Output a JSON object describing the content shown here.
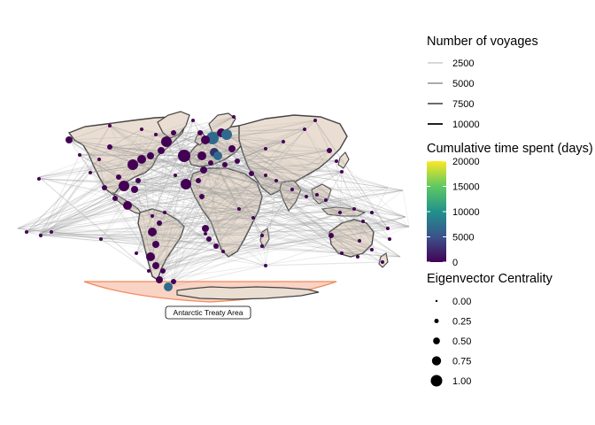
{
  "annotation": {
    "label": "Antarctic Treaty Area"
  },
  "legend_voyages": {
    "title": "Number of voyages",
    "items": [
      {
        "label": "2500",
        "value": 2500
      },
      {
        "label": "5000",
        "value": 5000
      },
      {
        "label": "7500",
        "value": 7500
      },
      {
        "label": "10000",
        "value": 10000
      }
    ]
  },
  "legend_time": {
    "title": "Cumulative time spent (days)",
    "ticks": [
      {
        "label": "20000",
        "value": 20000
      },
      {
        "label": "15000",
        "value": 15000
      },
      {
        "label": "10000",
        "value": 10000
      },
      {
        "label": "5000",
        "value": 5000
      },
      {
        "label": "0",
        "value": 0
      }
    ],
    "range": [
      0,
      20000
    ],
    "palette": [
      "#440154",
      "#3b528b",
      "#21918c",
      "#5ec962",
      "#fde725"
    ]
  },
  "legend_centrality": {
    "title": "Eigenvector Centrality",
    "items": [
      {
        "label": "0.00",
        "value": 0.0
      },
      {
        "label": "0.25",
        "value": 0.25
      },
      {
        "label": "0.50",
        "value": 0.5
      },
      {
        "label": "0.75",
        "value": 0.75
      },
      {
        "label": "1.00",
        "value": 1.0
      }
    ]
  },
  "colors": {
    "land": "#eaded2",
    "border": "#444444",
    "route": "#9a9a9a",
    "treaty_fill": "#f9d3c4",
    "treaty_stroke": "#f08a5d"
  }
}
